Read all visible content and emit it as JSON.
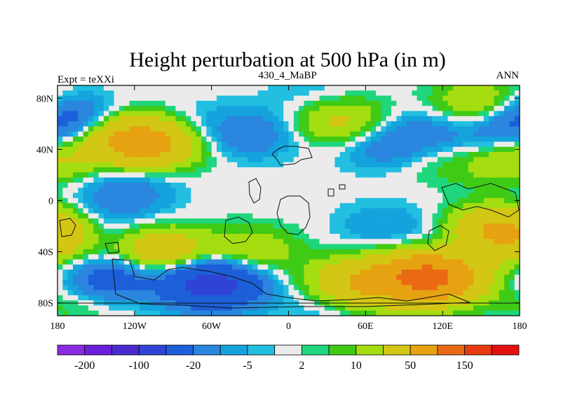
{
  "chart_data": {
    "type": "heatmap",
    "title": "Height perturbation at 500 hPa (in m)",
    "left_string": "Expt = teXXi",
    "center_string": "430_4_MaBP",
    "right_string": "ANN",
    "x_ticks": [
      {
        "value": -180,
        "label": "180"
      },
      {
        "value": -120,
        "label": "120W"
      },
      {
        "value": -60,
        "label": "60W"
      },
      {
        "value": 0,
        "label": "0"
      },
      {
        "value": 60,
        "label": "60E"
      },
      {
        "value": 120,
        "label": "120E"
      },
      {
        "value": 180,
        "label": "180"
      }
    ],
    "y_ticks": [
      {
        "value": 80,
        "label": "80N"
      },
      {
        "value": 40,
        "label": "40N"
      },
      {
        "value": 0,
        "label": "0"
      },
      {
        "value": -40,
        "label": "40S"
      },
      {
        "value": -80,
        "label": "80S"
      }
    ],
    "xlim": [
      -180,
      180
    ],
    "ylim": [
      -90,
      90
    ],
    "colorbar": {
      "colors": [
        "#8a2be2",
        "#6a1fd8",
        "#4b2bd0",
        "#2f44d6",
        "#1c5fd9",
        "#2a86de",
        "#14a3dc",
        "#22bfe0",
        "#ebebeb",
        "#1fd67c",
        "#3fca16",
        "#a4dd10",
        "#d4c614",
        "#e6a210",
        "#ea6a14",
        "#e83a10",
        "#e41010"
      ],
      "labels": [
        {
          "after_index": 0,
          "text": "-200"
        },
        {
          "after_index": 2,
          "text": "-100"
        },
        {
          "after_index": 4,
          "text": "-20"
        },
        {
          "after_index": 6,
          "text": "-5"
        },
        {
          "after_index": 8,
          "text": "2"
        },
        {
          "after_index": 10,
          "text": "10"
        },
        {
          "after_index": 12,
          "text": "50"
        },
        {
          "after_index": 14,
          "text": "150"
        }
      ]
    },
    "anomaly_centers": [
      {
        "lon": -120,
        "lat": 48,
        "value": 55
      },
      {
        "lon": -105,
        "lat": 40,
        "value": 30
      },
      {
        "lon": 40,
        "lat": 62,
        "value": 25
      },
      {
        "lon": 150,
        "lat": 75,
        "value": 25
      },
      {
        "lon": 110,
        "lat": -60,
        "value": 120
      },
      {
        "lon": 55,
        "lat": -65,
        "value": 50
      },
      {
        "lon": -100,
        "lat": -40,
        "value": 40
      },
      {
        "lon": -30,
        "lat": -40,
        "value": 20
      },
      {
        "lon": -165,
        "lat": -80,
        "value": 8
      },
      {
        "lon": 160,
        "lat": -22,
        "value": 30
      },
      {
        "lon": 170,
        "lat": -28,
        "value": 40
      },
      {
        "lon": 175,
        "lat": 35,
        "value": 30
      },
      {
        "lon": 90,
        "lat": 35,
        "value": 12
      },
      {
        "lon": 133,
        "lat": 30,
        "value": 6
      },
      {
        "lon": -170,
        "lat": -50,
        "value": 6
      },
      {
        "lon": -175,
        "lat": 65,
        "value": -30
      },
      {
        "lon": -130,
        "lat": 2,
        "value": -15
      },
      {
        "lon": -60,
        "lat": -65,
        "value": -70
      },
      {
        "lon": -30,
        "lat": 52,
        "value": -18
      },
      {
        "lon": 80,
        "lat": 40,
        "value": -25
      },
      {
        "lon": 165,
        "lat": 45,
        "value": -20
      },
      {
        "lon": 110,
        "lat": 55,
        "value": -12
      },
      {
        "lon": -115,
        "lat": 22,
        "value": -8
      },
      {
        "lon": 140,
        "lat": -35,
        "value": -12
      },
      {
        "lon": 75,
        "lat": -20,
        "value": -10
      },
      {
        "lon": -150,
        "lat": -25,
        "value": -8
      },
      {
        "lon": -80,
        "lat": 60,
        "value": -5
      },
      {
        "lon": 20,
        "lat": 82,
        "value": -6
      },
      {
        "lon": -140,
        "lat": -60,
        "value": -35
      },
      {
        "lon": 30,
        "lat": -82,
        "value": -8
      }
    ]
  }
}
